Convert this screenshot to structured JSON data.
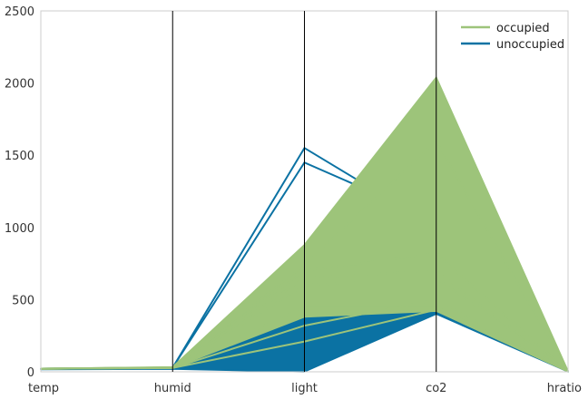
{
  "chart_data": {
    "type": "parallel_coordinates",
    "axes": [
      "temp",
      "humid",
      "light",
      "co2",
      "hratio"
    ],
    "ylim": [
      0,
      2500
    ],
    "yticks": [
      "0",
      "500",
      "1000",
      "1500",
      "2000",
      "2500"
    ],
    "grid": false,
    "legend": {
      "position": "top-right",
      "entries": [
        "occupied",
        "unoccupied"
      ]
    },
    "colors": {
      "occupied": "#9dc47a",
      "unoccupied": "#0b72a3",
      "axis": "#000000",
      "frame": "#cccccc"
    },
    "series": [
      {
        "name": "unoccupied",
        "band": {
          "min": [
            16,
            19,
            0,
            400,
            0
          ],
          "max": [
            24,
            30,
            600,
            1800,
            0
          ]
        },
        "lines": [
          [
            20,
            28,
            1550,
            1000,
            3
          ],
          [
            20,
            28,
            1450,
            1050,
            3
          ],
          [
            20,
            27,
            830,
            700,
            3
          ],
          [
            21,
            27,
            650,
            650,
            3
          ],
          [
            22,
            27,
            600,
            550,
            3
          ],
          [
            21,
            26,
            350,
            450,
            3
          ]
        ]
      },
      {
        "name": "occupied",
        "band": {
          "min": [
            21,
            26,
            380,
            420,
            0
          ],
          "max": [
            23,
            34,
            880,
            2040,
            6
          ]
        },
        "lines": [
          [
            22,
            30,
            740,
            1600,
            4
          ],
          [
            22,
            30,
            700,
            820,
            4
          ],
          [
            21,
            29,
            650,
            700,
            4
          ],
          [
            22,
            28,
            600,
            650,
            4
          ],
          [
            21,
            27,
            450,
            450,
            4
          ],
          [
            20,
            26,
            320,
            500,
            4
          ],
          [
            20,
            27,
            210,
            430,
            4
          ]
        ]
      }
    ]
  }
}
